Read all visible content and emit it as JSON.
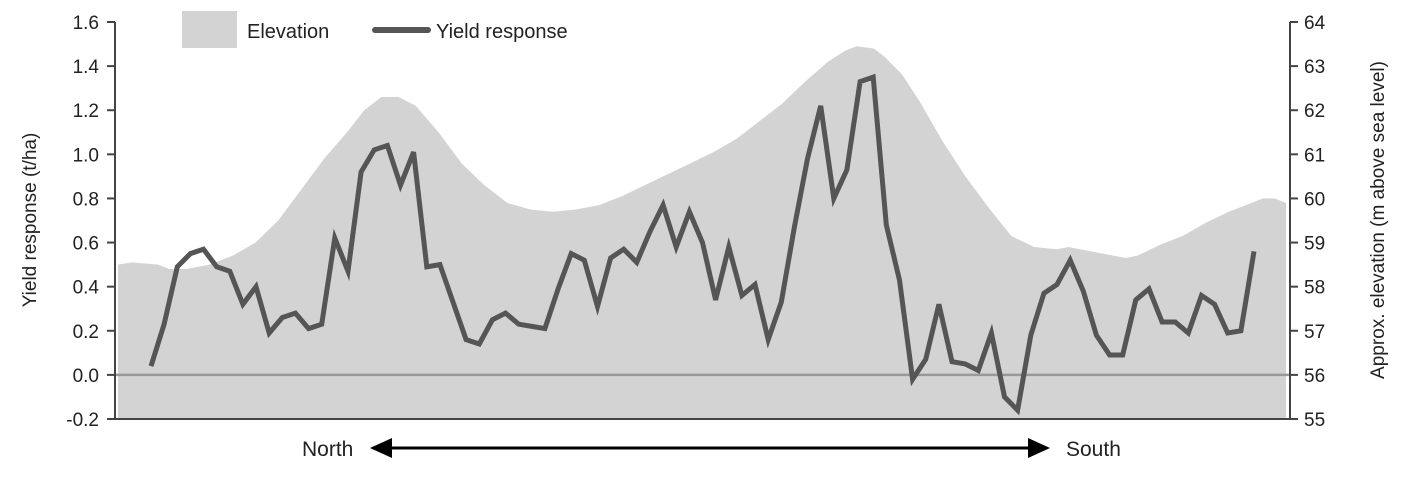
{
  "chart_data": {
    "type": "area+line",
    "title": "",
    "direction": {
      "left_label": "North",
      "right_label": "South"
    },
    "legend": {
      "placement": "top-left",
      "entries": [
        {
          "name": "Elevation",
          "marker": "area"
        },
        {
          "name": "Yield response",
          "marker": "line"
        }
      ]
    },
    "colors": {
      "elevation_fill": "#d3d3d3",
      "yield_line": "#555555",
      "axis": "#444444",
      "zero_line": "#999999"
    },
    "axes": {
      "left": {
        "label": "Yield response (t/ha)",
        "range": [
          -0.2,
          1.6
        ],
        "ticks": [
          "-0.2",
          "0.0",
          "0.2",
          "0.4",
          "0.6",
          "0.8",
          "1.0",
          "1.2",
          "1.4",
          "1.6"
        ]
      },
      "right": {
        "label": "Approx. elevation (m above sea level)",
        "range": [
          55,
          64
        ],
        "ticks": [
          "55",
          "56",
          "57",
          "58",
          "59",
          "60",
          "61",
          "62",
          "63",
          "64"
        ]
      }
    },
    "elevation": [
      [
        0,
        58.5
      ],
      [
        1.2,
        58.55
      ],
      [
        3.5,
        58.5
      ],
      [
        4.5,
        58.4
      ],
      [
        6,
        58.4
      ],
      [
        8,
        58.5
      ],
      [
        10,
        58.7
      ],
      [
        12,
        59
      ],
      [
        14,
        59.5
      ],
      [
        16,
        60.2
      ],
      [
        18,
        60.9
      ],
      [
        20,
        61.5
      ],
      [
        21.5,
        62
      ],
      [
        23,
        62.3
      ],
      [
        24.5,
        62.3
      ],
      [
        26,
        62.1
      ],
      [
        28,
        61.5
      ],
      [
        30,
        60.8
      ],
      [
        32,
        60.3
      ],
      [
        34,
        59.9
      ],
      [
        36,
        59.75
      ],
      [
        38,
        59.7
      ],
      [
        40,
        59.75
      ],
      [
        42,
        59.85
      ],
      [
        44,
        60.05
      ],
      [
        46,
        60.3
      ],
      [
        48,
        60.55
      ],
      [
        50,
        60.8
      ],
      [
        52,
        61.05
      ],
      [
        54,
        61.35
      ],
      [
        56,
        61.75
      ],
      [
        58,
        62.15
      ],
      [
        60,
        62.65
      ],
      [
        62,
        63.1
      ],
      [
        63.5,
        63.35
      ],
      [
        64.5,
        63.45
      ],
      [
        66,
        63.4
      ],
      [
        67,
        63.2
      ],
      [
        68.5,
        62.8
      ],
      [
        70,
        62.2
      ],
      [
        72,
        61.3
      ],
      [
        74,
        60.5
      ],
      [
        76,
        59.8
      ],
      [
        78,
        59.15
      ],
      [
        80,
        58.9
      ],
      [
        82,
        58.85
      ],
      [
        83,
        58.9
      ],
      [
        84,
        58.85
      ],
      [
        86,
        58.75
      ],
      [
        88,
        58.65
      ],
      [
        89,
        58.7
      ],
      [
        91,
        58.95
      ],
      [
        93,
        59.15
      ],
      [
        95,
        59.45
      ],
      [
        97,
        59.7
      ],
      [
        98.5,
        59.85
      ],
      [
        100,
        60
      ],
      [
        101,
        60
      ],
      [
        102,
        59.9
      ]
    ],
    "yield_response": [
      [
        0,
        0.04
      ],
      [
        1,
        0.23
      ],
      [
        2,
        0.49
      ],
      [
        3,
        0.55
      ],
      [
        4,
        0.57
      ],
      [
        5,
        0.49
      ],
      [
        6,
        0.47
      ],
      [
        7,
        0.32
      ],
      [
        8,
        0.4
      ],
      [
        9,
        0.19
      ],
      [
        10,
        0.26
      ],
      [
        11,
        0.28
      ],
      [
        12,
        0.21
      ],
      [
        13,
        0.23
      ],
      [
        14,
        0.62
      ],
      [
        15,
        0.47
      ],
      [
        16,
        0.92
      ],
      [
        17,
        1.02
      ],
      [
        18,
        1.04
      ],
      [
        19,
        0.86
      ],
      [
        20,
        1.01
      ],
      [
        21,
        0.49
      ],
      [
        22,
        0.5
      ],
      [
        23,
        0.33
      ],
      [
        24,
        0.16
      ],
      [
        25,
        0.14
      ],
      [
        26,
        0.25
      ],
      [
        27,
        0.28
      ],
      [
        28,
        0.23
      ],
      [
        29,
        0.22
      ],
      [
        30,
        0.21
      ],
      [
        31,
        0.39
      ],
      [
        32,
        0.55
      ],
      [
        33,
        0.52
      ],
      [
        34,
        0.31
      ],
      [
        35,
        0.53
      ],
      [
        36,
        0.57
      ],
      [
        37,
        0.51
      ],
      [
        38,
        0.65
      ],
      [
        39,
        0.77
      ],
      [
        40,
        0.58
      ],
      [
        41,
        0.74
      ],
      [
        42,
        0.6
      ],
      [
        43,
        0.34
      ],
      [
        44,
        0.58
      ],
      [
        45,
        0.36
      ],
      [
        46,
        0.41
      ],
      [
        47,
        0.16
      ],
      [
        48,
        0.33
      ],
      [
        49,
        0.67
      ],
      [
        50,
        0.98
      ],
      [
        51,
        1.22
      ],
      [
        52,
        0.8
      ],
      [
        53,
        0.93
      ],
      [
        54,
        1.33
      ],
      [
        55,
        1.35
      ],
      [
        56,
        0.68
      ],
      [
        57,
        0.43
      ],
      [
        58,
        -0.02
      ],
      [
        59,
        0.07
      ],
      [
        60,
        0.32
      ],
      [
        61,
        0.06
      ],
      [
        62,
        0.05
      ],
      [
        63,
        0.02
      ],
      [
        64,
        0.19
      ],
      [
        65,
        -0.1
      ],
      [
        66,
        -0.16
      ],
      [
        67,
        0.18
      ],
      [
        68,
        0.37
      ],
      [
        69,
        0.41
      ],
      [
        70,
        0.52
      ],
      [
        71,
        0.38
      ],
      [
        72,
        0.18
      ],
      [
        73,
        0.09
      ],
      [
        74,
        0.09
      ],
      [
        75,
        0.34
      ],
      [
        76,
        0.39
      ],
      [
        77,
        0.24
      ],
      [
        78,
        0.24
      ],
      [
        79,
        0.19
      ],
      [
        80,
        0.36
      ],
      [
        81,
        0.32
      ],
      [
        82,
        0.19
      ],
      [
        83,
        0.2
      ],
      [
        84,
        0.56
      ]
    ]
  }
}
